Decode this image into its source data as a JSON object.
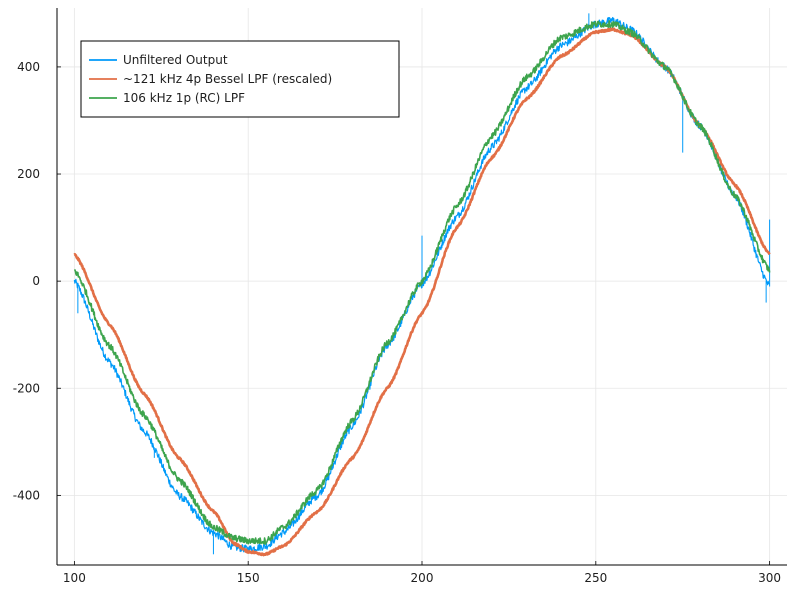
{
  "chart_data": {
    "type": "line",
    "title": "",
    "xlabel": "",
    "ylabel": "",
    "xlim": [
      95,
      305
    ],
    "ylim": [
      -530,
      510
    ],
    "xticks": [
      100,
      150,
      200,
      250,
      300
    ],
    "yticks": [
      -400,
      -200,
      0,
      200,
      400
    ],
    "grid": true,
    "legend_position": "top-left",
    "series": [
      {
        "name": "Unfiltered Output",
        "color": "#009AF9",
        "width": 1.2,
        "points": [
          [
            100,
            0
          ],
          [
            110,
            -150
          ],
          [
            120,
            -280
          ],
          [
            130,
            -400
          ],
          [
            140,
            -470
          ],
          [
            146,
            -497
          ],
          [
            150,
            -500
          ],
          [
            155,
            -495
          ],
          [
            160,
            -470
          ],
          [
            170,
            -400
          ],
          [
            180,
            -270
          ],
          [
            190,
            -120
          ],
          [
            200,
            -5
          ],
          [
            210,
            120
          ],
          [
            220,
            250
          ],
          [
            230,
            360
          ],
          [
            240,
            440
          ],
          [
            250,
            480
          ],
          [
            255,
            487
          ],
          [
            260,
            470
          ],
          [
            270,
            400
          ],
          [
            280,
            290
          ],
          [
            290,
            160
          ],
          [
            300,
            -10
          ]
        ],
        "noise": 7,
        "spikes": [
          [
            101,
            -60
          ],
          [
            123,
            -330
          ],
          [
            140,
            -510
          ],
          [
            200,
            85
          ],
          [
            248,
            500
          ],
          [
            275,
            240
          ],
          [
            300,
            115
          ],
          [
            299,
            -40
          ]
        ]
      },
      {
        "name": "~121 kHz 4p Bessel LPF (rescaled)",
        "color": "#E26F46",
        "width": 2.6,
        "points": [
          [
            100,
            50
          ],
          [
            110,
            -80
          ],
          [
            120,
            -210
          ],
          [
            130,
            -330
          ],
          [
            140,
            -430
          ],
          [
            146,
            -490
          ],
          [
            150,
            -505
          ],
          [
            155,
            -510
          ],
          [
            160,
            -495
          ],
          [
            170,
            -430
          ],
          [
            180,
            -330
          ],
          [
            190,
            -200
          ],
          [
            200,
            -60
          ],
          [
            210,
            100
          ],
          [
            220,
            230
          ],
          [
            230,
            340
          ],
          [
            240,
            420
          ],
          [
            250,
            465
          ],
          [
            255,
            470
          ],
          [
            260,
            460
          ],
          [
            270,
            400
          ],
          [
            280,
            290
          ],
          [
            290,
            180
          ],
          [
            300,
            50
          ]
        ],
        "noise": 2,
        "spikes": []
      },
      {
        "name": "106 kHz 1p (RC) LPF",
        "color": "#3DA44D",
        "width": 1.6,
        "points": [
          [
            100,
            20
          ],
          [
            110,
            -120
          ],
          [
            120,
            -250
          ],
          [
            130,
            -370
          ],
          [
            140,
            -460
          ],
          [
            146,
            -480
          ],
          [
            150,
            -485
          ],
          [
            155,
            -485
          ],
          [
            160,
            -460
          ],
          [
            170,
            -390
          ],
          [
            180,
            -260
          ],
          [
            190,
            -115
          ],
          [
            200,
            0
          ],
          [
            210,
            140
          ],
          [
            220,
            270
          ],
          [
            230,
            380
          ],
          [
            240,
            455
          ],
          [
            250,
            480
          ],
          [
            255,
            480
          ],
          [
            260,
            465
          ],
          [
            270,
            400
          ],
          [
            280,
            290
          ],
          [
            290,
            160
          ],
          [
            300,
            20
          ]
        ],
        "noise": 6,
        "spikes": []
      }
    ]
  }
}
